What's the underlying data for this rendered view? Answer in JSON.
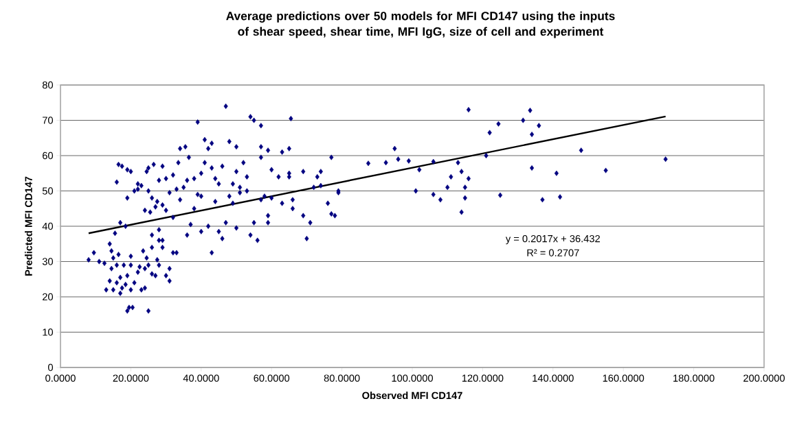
{
  "chart_data": {
    "type": "scatter",
    "title": "Average predictions over 50 models for MFI CD147 using the inputs of shear speed, shear time, MFI IgG, size of cell and experiment",
    "xlabel": "Observed MFI CD147",
    "ylabel": "Predicted MFI CD147",
    "xlim": [
      0,
      200
    ],
    "ylim": [
      0,
      80
    ],
    "xticks": [
      {
        "value": 0,
        "label": "0.0000"
      },
      {
        "value": 20,
        "label": "20.0000"
      },
      {
        "value": 40,
        "label": "40.0000"
      },
      {
        "value": 60,
        "label": "60.0000"
      },
      {
        "value": 80,
        "label": "80.0000"
      },
      {
        "value": 100,
        "label": "100.0000"
      },
      {
        "value": 120,
        "label": "120.0000"
      },
      {
        "value": 140,
        "label": "140.0000"
      },
      {
        "value": 160,
        "label": "160.0000"
      },
      {
        "value": 180,
        "label": "180.0000"
      },
      {
        "value": 200,
        "label": "200.0000"
      }
    ],
    "yticks": [
      0,
      10,
      20,
      30,
      40,
      50,
      60,
      70,
      80
    ],
    "grid": "y",
    "marker": "diamond",
    "annotations": [
      "y = 0.2017x + 36.432",
      "R² = 0.2707"
    ],
    "series": [
      {
        "color": "#000080",
        "x": [
          8,
          9.5,
          11,
          12.5,
          13,
          14,
          14,
          14.5,
          14.5,
          15,
          15,
          15.5,
          16,
          16,
          16.5,
          17,
          17,
          17.5,
          18,
          18.5,
          19,
          19,
          19.5,
          20,
          20,
          20,
          20.5,
          21,
          22,
          23,
          23.5,
          24,
          24.5,
          25,
          25,
          26,
          26,
          27,
          27.5,
          28,
          28,
          29,
          30,
          31,
          31,
          32,
          33,
          24,
          22.5,
          26,
          29,
          16,
          16.5,
          17,
          17.5,
          18.5,
          19,
          19,
          20,
          21,
          22,
          22,
          23,
          24,
          24.5,
          25,
          25,
          25.5,
          26,
          26.5,
          27,
          27.5,
          28,
          28,
          29,
          29,
          30,
          30,
          31,
          32,
          32,
          33,
          33.5,
          34,
          35,
          36,
          36,
          34,
          35.5,
          36.5,
          37,
          38,
          38,
          39,
          39,
          40,
          40,
          40,
          41,
          41,
          42,
          42,
          43,
          43,
          43,
          44,
          44,
          45,
          45,
          46,
          46,
          47,
          47,
          48,
          48,
          49,
          49,
          50,
          50,
          50,
          51,
          51,
          52,
          53,
          53,
          54,
          54,
          55,
          55,
          56,
          57,
          57,
          57,
          57,
          58,
          59,
          59,
          59,
          60,
          60,
          62,
          63,
          63,
          65,
          65,
          65,
          65.5,
          66,
          66,
          69,
          69,
          70,
          71,
          72,
          73,
          74,
          74,
          76,
          77,
          77,
          78,
          79,
          79,
          87.5,
          92.5,
          95,
          96,
          99,
          101,
          102,
          106,
          106,
          108,
          110,
          111,
          113,
          114,
          114,
          115,
          115,
          116,
          116,
          121,
          122,
          124.5,
          125,
          131.5,
          133.5,
          134,
          134,
          136,
          137,
          141,
          142,
          148,
          155,
          172
        ],
        "values": [
          30.5,
          32.5,
          30,
          29.5,
          22,
          24.5,
          35,
          33,
          28,
          31,
          22,
          38,
          24,
          29,
          32,
          21,
          25.5,
          22.5,
          29,
          23.5,
          26,
          16,
          17,
          31.5,
          29,
          22,
          17,
          24,
          27,
          22,
          33,
          28,
          31,
          16,
          29,
          26.5,
          34,
          26,
          30.5,
          36,
          29,
          34,
          26,
          28,
          24.5,
          32.5,
          32.5,
          22.5,
          28.5,
          37.5,
          36,
          52.5,
          57.5,
          41,
          57,
          40,
          56,
          48,
          55.5,
          50,
          52,
          50.5,
          51.5,
          44.5,
          55.5,
          56.5,
          50,
          44,
          48,
          57.5,
          45.5,
          47,
          53,
          39,
          57,
          46,
          44.5,
          53.5,
          49.5,
          42.5,
          54.5,
          50.5,
          58,
          47.5,
          51,
          53,
          37.5,
          62,
          62.5,
          59.5,
          40.5,
          45,
          53.5,
          69.5,
          49,
          48.5,
          55,
          38.5,
          64.5,
          58,
          62,
          40,
          63.5,
          56.5,
          32.5,
          47,
          53.5,
          38.5,
          52,
          36.5,
          57,
          74,
          41,
          64,
          48.5,
          46.5,
          52,
          55.5,
          39.5,
          62.5,
          51,
          49.5,
          58,
          54,
          50,
          71,
          37.5,
          41,
          70,
          36,
          68.5,
          62.5,
          59.5,
          47.5,
          48.5,
          61.5,
          43,
          41,
          48,
          56,
          54,
          61,
          46.5,
          62,
          55,
          54,
          70.5,
          47.5,
          45,
          43,
          55.5,
          36.5,
          41,
          51,
          54,
          55.5,
          51.5,
          46.5,
          59.5,
          43.5,
          43,
          50,
          49.5,
          57.8,
          58,
          62,
          59,
          58.5,
          50,
          56,
          58.3,
          49,
          47.5,
          51,
          54,
          58,
          44,
          55.5,
          48,
          51,
          73,
          53.5,
          60,
          66.5,
          69,
          48.8,
          70,
          72.8,
          56.5,
          66,
          68.5,
          47.5,
          55,
          48.3,
          61.5,
          55.8,
          59
        ]
      },
      {
        "type": "line",
        "marker": "none",
        "color": "#000000",
        "x": [
          8,
          172
        ],
        "values": [
          38.0,
          71.1
        ]
      }
    ]
  }
}
